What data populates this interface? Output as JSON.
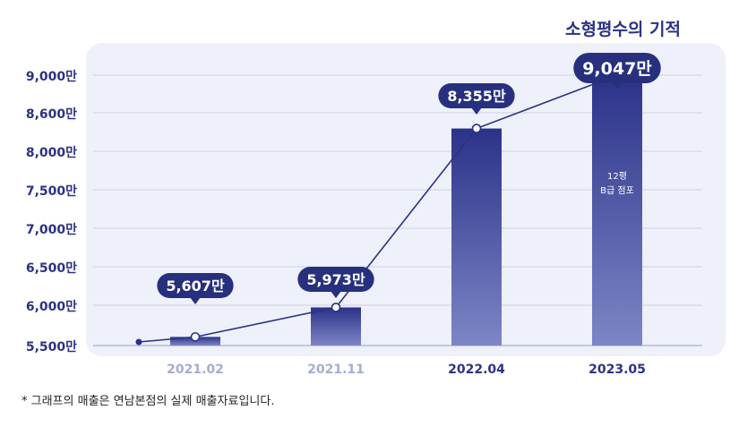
{
  "title": "소형평수의 기적",
  "footnote": "* 그래프의 매출은 연남본점의 실제 매출자료입니다.",
  "colors": {
    "panel": "#eef0fa",
    "bar_top": "#2b3289",
    "bar_bottom": "#7d86c6",
    "line": "#2b3384",
    "bubble": "#27307e",
    "axis_text": "#2b3384",
    "muted_label": "#a6acd0"
  },
  "chart_data": {
    "type": "bar",
    "title": "소형평수의 기적",
    "categories": [
      "2021.02",
      "2021.11",
      "2022.04",
      "2023.05"
    ],
    "values": [
      5607,
      5973,
      8355,
      9047
    ],
    "value_labels": [
      "5,607만",
      "5,973만",
      "8,355만",
      "9,047만"
    ],
    "y_ticks": [
      5500,
      6000,
      6500,
      7000,
      7500,
      8000,
      8600,
      9000
    ],
    "y_tick_labels": [
      "5,500만",
      "6,000만",
      "6,500만",
      "7,000만",
      "7,500만",
      "8,000만",
      "8,600만",
      "9,000만"
    ],
    "bar_annotations": [
      {
        "category": "2023.05",
        "lines": [
          "12평",
          "B급 점포"
        ]
      }
    ],
    "grid": true,
    "highlighted_categories": [
      "2022.04",
      "2023.05"
    ]
  }
}
